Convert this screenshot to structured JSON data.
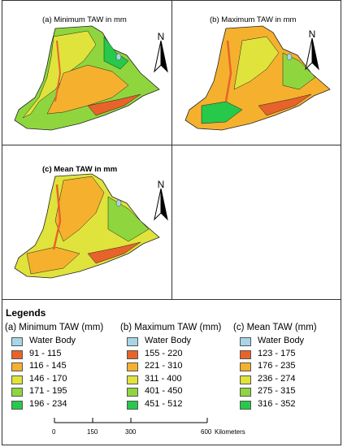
{
  "panels": {
    "a": {
      "title": "(a) Minimum TAW  in mm"
    },
    "b": {
      "title": "(b) Maximum TAW  in mm"
    },
    "c": {
      "title": "(c) Mean TAW  in mm"
    }
  },
  "north_label": "N",
  "legend": {
    "title": "Legends",
    "columns": [
      {
        "heading": "(a) Minimum TAW (mm)",
        "items": [
          {
            "label": "Water Body",
            "color": "#a6d6e8"
          },
          {
            "label": "91 - 115",
            "color": "#e8632a"
          },
          {
            "label": "116 - 145",
            "color": "#f5b12e"
          },
          {
            "label": "146 - 170",
            "color": "#dfe33b"
          },
          {
            "label": "171 - 195",
            "color": "#8fd63e"
          },
          {
            "label": "196 - 234",
            "color": "#26c94a"
          }
        ]
      },
      {
        "heading": "(b) Maximum TAW (mm)",
        "items": [
          {
            "label": "Water Body",
            "color": "#a6d6e8"
          },
          {
            "label": "155 - 220",
            "color": "#e8632a"
          },
          {
            "label": "221 - 310",
            "color": "#f5b12e"
          },
          {
            "label": "311 - 400",
            "color": "#dfe33b"
          },
          {
            "label": "401 - 450",
            "color": "#8fd63e"
          },
          {
            "label": "451 - 512",
            "color": "#26c94a"
          }
        ]
      },
      {
        "heading": "(c) Mean TAW (mm)",
        "items": [
          {
            "label": "Water Body",
            "color": "#a6d6e8"
          },
          {
            "label": "123 - 175",
            "color": "#e8632a"
          },
          {
            "label": "176 - 235",
            "color": "#f5b12e"
          },
          {
            "label": "236 - 274",
            "color": "#dfe33b"
          },
          {
            "label": "275 - 315",
            "color": "#8fd63e"
          },
          {
            "label": "316 - 352",
            "color": "#26c94a"
          }
        ]
      }
    ]
  },
  "scale_bar": {
    "ticks": [
      "0",
      "150",
      "300",
      "600"
    ],
    "unit": "Kilometers"
  },
  "colors": {
    "water": "#a6d6e8",
    "class1": "#e8632a",
    "class2": "#f5b12e",
    "class3": "#dfe33b",
    "class4": "#8fd63e",
    "class5": "#26c94a"
  }
}
